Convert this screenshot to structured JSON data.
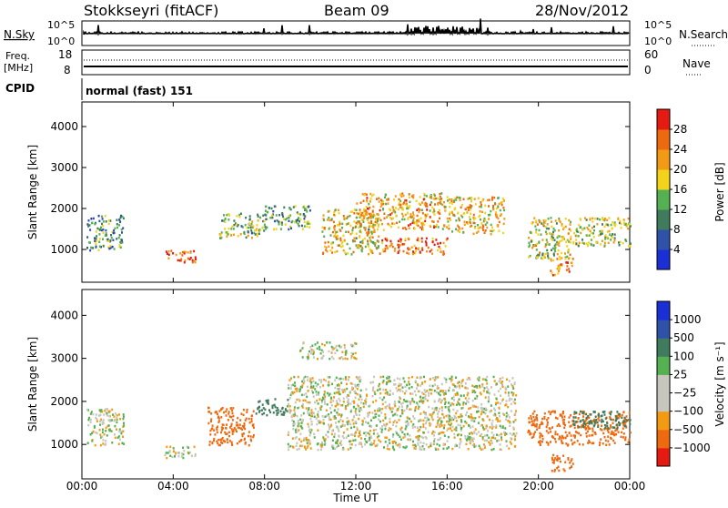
{
  "header": {
    "station": "Stokkseyri (fitACF)",
    "beam": "Beam 09",
    "date": "28/Nov/2012"
  },
  "top_panels": {
    "nsky_label": "N.Sky",
    "nsky_ticks": [
      "10^5",
      "10^0"
    ],
    "nsearch_label": "N.Search",
    "nsearch_ticks": [
      "10^5",
      "10^0"
    ],
    "freq_label": "Freq.",
    "freq_unit": "[MHz]",
    "freq_ticks": [
      "18",
      "8"
    ],
    "nave_label": "Nave",
    "nave_ticks": [
      "60",
      "0"
    ],
    "cpid_label": "CPID",
    "cpid_value": "normal (fast) 151"
  },
  "colors": {
    "power_scale": [
      "#1a2fd6",
      "#2f52a8",
      "#3f7b5c",
      "#54b050",
      "#f2d21a",
      "#f29a14",
      "#ee6a10",
      "#e51a10"
    ],
    "velocity_scale": [
      "#e51a10",
      "#ee6a10",
      "#f29a14",
      "#c6c6bc",
      "#c6c6bc",
      "#54b050",
      "#3f7b5c",
      "#2f52a8",
      "#1a2fd6"
    ]
  },
  "chart_data": [
    {
      "type": "heatmap",
      "title": "",
      "xlabel": "",
      "ylabel": "Slant Range [km]",
      "xlim": [
        0,
        24
      ],
      "ylim": [
        200,
        4600
      ],
      "x_ticks": [
        "00:00",
        "04:00",
        "08:00",
        "12:00",
        "16:00",
        "20:00",
        "00:00"
      ],
      "y_ticks": [
        1000,
        2000,
        3000,
        4000
      ],
      "colorbar": {
        "label": "Power [dB]",
        "ticks": [
          "4",
          "8",
          "12",
          "16",
          "20",
          "24",
          "28"
        ],
        "range": [
          0,
          30
        ]
      },
      "series": [
        {
          "time": [
            0.2,
            1.8
          ],
          "range": [
            1000,
            1850
          ],
          "value": 10
        },
        {
          "time": [
            3.6,
            5.0
          ],
          "range": [
            700,
            1000
          ],
          "value": 26
        },
        {
          "time": [
            6.0,
            8.0
          ],
          "range": [
            1300,
            1900
          ],
          "value": 14
        },
        {
          "time": [
            8.0,
            10.0
          ],
          "range": [
            1500,
            2100
          ],
          "value": 12
        },
        {
          "time": [
            10.5,
            13.0
          ],
          "range": [
            900,
            2000
          ],
          "value": 18
        },
        {
          "time": [
            12.0,
            16.0
          ],
          "range": [
            1500,
            2400
          ],
          "value": 20
        },
        {
          "time": [
            13.0,
            16.0
          ],
          "range": [
            900,
            1300
          ],
          "value": 24
        },
        {
          "time": [
            16.0,
            18.5
          ],
          "range": [
            1400,
            2300
          ],
          "value": 19
        },
        {
          "time": [
            19.5,
            21.5
          ],
          "range": [
            800,
            1800
          ],
          "value": 16
        },
        {
          "time": [
            20.5,
            21.5
          ],
          "range": [
            400,
            800
          ],
          "value": 22
        },
        {
          "time": [
            21.5,
            24.0
          ],
          "range": [
            1100,
            1800
          ],
          "value": 15
        }
      ]
    },
    {
      "type": "heatmap",
      "title": "",
      "xlabel": "Time UT",
      "ylabel": "Slant Range [km]",
      "xlim": [
        0,
        24
      ],
      "ylim": [
        200,
        4600
      ],
      "x_ticks": [
        "00:00",
        "04:00",
        "08:00",
        "12:00",
        "16:00",
        "20:00",
        "00:00"
      ],
      "y_ticks": [
        1000,
        2000,
        3000,
        4000
      ],
      "colorbar": {
        "label": "Velocity [m s⁻¹]",
        "ticks": [
          "1000",
          "500",
          "100",
          "25",
          "−25",
          "−100",
          "−500",
          "−1000"
        ]
      },
      "series": [
        {
          "time": [
            0.2,
            1.8
          ],
          "range": [
            1000,
            1850
          ],
          "value": 0
        },
        {
          "time": [
            3.6,
            5.0
          ],
          "range": [
            700,
            1000
          ],
          "value": 0
        },
        {
          "time": [
            5.5,
            7.5
          ],
          "range": [
            1000,
            1900
          ],
          "value": -200
        },
        {
          "time": [
            7.5,
            9.0
          ],
          "range": [
            1700,
            2100
          ],
          "value": 150
        },
        {
          "time": [
            9.0,
            19.0
          ],
          "range": [
            900,
            2600
          ],
          "value": 0
        },
        {
          "time": [
            9.5,
            12.0
          ],
          "range": [
            3000,
            3400
          ],
          "value": 0
        },
        {
          "time": [
            19.5,
            24.0
          ],
          "range": [
            1000,
            1800
          ],
          "value": -400
        },
        {
          "time": [
            21.5,
            24.0
          ],
          "range": [
            1400,
            1800
          ],
          "value": 300
        },
        {
          "time": [
            20.5,
            21.5
          ],
          "range": [
            400,
            800
          ],
          "value": -300
        }
      ]
    }
  ]
}
